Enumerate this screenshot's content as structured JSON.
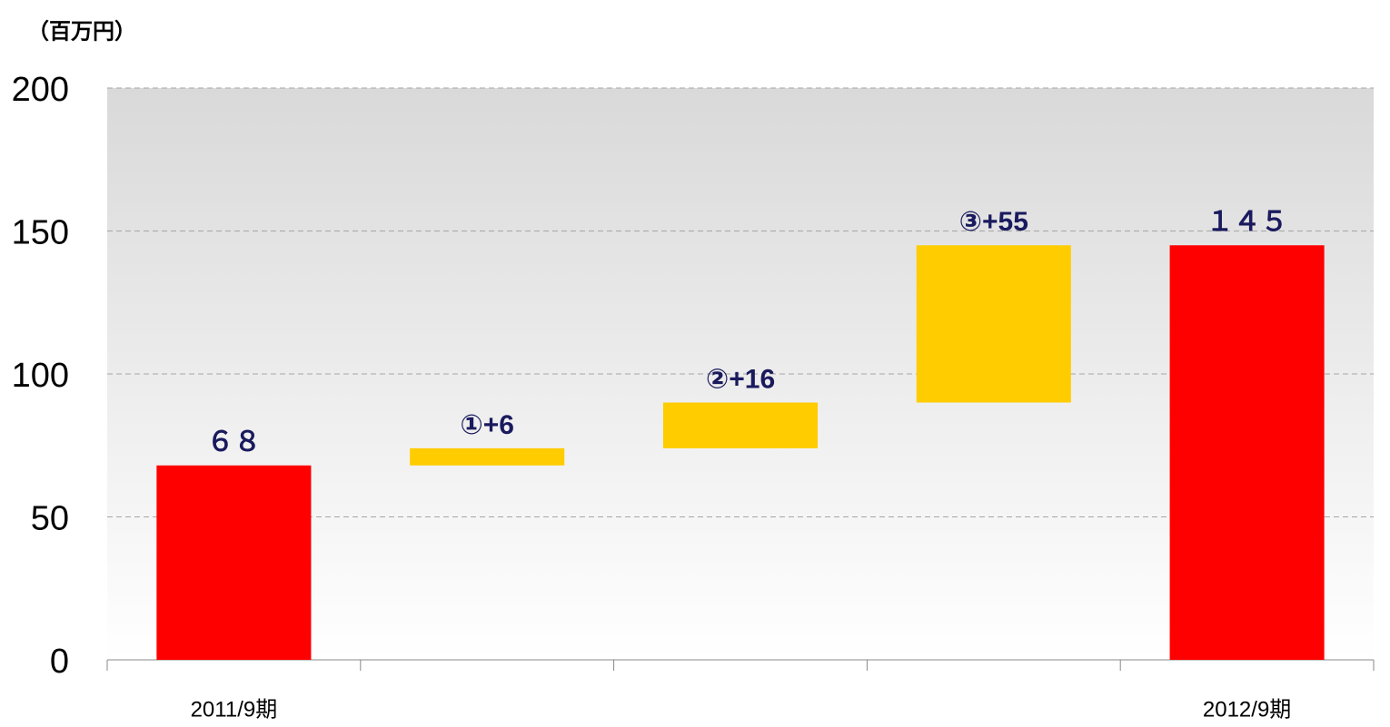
{
  "chart_data": {
    "type": "waterfall",
    "y_label": "（百万円）",
    "categories": [
      "2011/9期",
      null,
      null,
      null,
      "2012/9期"
    ],
    "values": [
      68,
      6,
      16,
      55,
      145
    ],
    "value_labels": [
      "６８",
      "①+6",
      "②+16",
      "③+55",
      "１４５"
    ],
    "measures": [
      "total",
      "relative",
      "relative",
      "relative",
      "total"
    ],
    "colors": {
      "total": "#ff0000",
      "relative": "#ffcc00"
    },
    "ylim": [
      0,
      200
    ],
    "yticks": [
      0,
      50,
      100,
      150,
      200
    ],
    "grid": true
  }
}
